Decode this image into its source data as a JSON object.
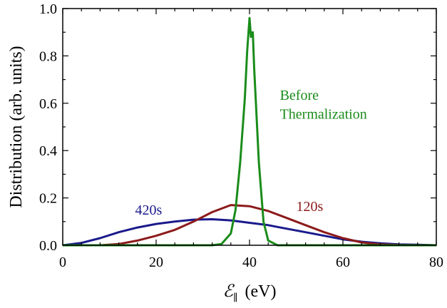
{
  "chart_data": {
    "type": "line",
    "title": "",
    "xlabel_symbol": "ℰ",
    "xlabel_subscript": "∥",
    "xlabel_unit": "(eV)",
    "ylabel": "Distribution (arb. units)",
    "xlim": [
      0,
      80
    ],
    "ylim": [
      0,
      1.0
    ],
    "xticks": [
      0,
      20,
      40,
      60,
      80
    ],
    "yticks": [
      0.0,
      0.2,
      0.4,
      0.6,
      0.8,
      1.0
    ],
    "ytick_labels": [
      "0.0",
      "0.2",
      "0.4",
      "0.6",
      "0.8",
      "1.0"
    ],
    "grid": false,
    "legend": "none",
    "series": [
      {
        "name": "420s",
        "color": "#1a1a8c",
        "x": [
          0,
          4,
          8,
          12,
          16,
          20,
          24,
          28,
          32,
          36,
          40,
          44,
          48,
          52,
          56,
          60,
          64,
          68,
          72,
          76,
          80
        ],
        "y": [
          0.0,
          0.01,
          0.03,
          0.055,
          0.075,
          0.09,
          0.1,
          0.108,
          0.11,
          0.105,
          0.095,
          0.085,
          0.07,
          0.055,
          0.04,
          0.025,
          0.015,
          0.008,
          0.004,
          0.002,
          0.0
        ]
      },
      {
        "name": "120s",
        "color": "#8c1a1a",
        "x": [
          0,
          8,
          12,
          16,
          20,
          24,
          28,
          32,
          36,
          40,
          44,
          48,
          52,
          56,
          60,
          64,
          68,
          72,
          80
        ],
        "y": [
          0.0,
          0.0,
          0.005,
          0.02,
          0.04,
          0.065,
          0.1,
          0.14,
          0.17,
          0.165,
          0.145,
          0.115,
          0.085,
          0.055,
          0.03,
          0.012,
          0.004,
          0.001,
          0.0
        ]
      },
      {
        "name": "Before Thermalization",
        "color": "#1a8c1a",
        "x": [
          0,
          32,
          34,
          36,
          37,
          38,
          39,
          39.5,
          40,
          40.3,
          40.7,
          41,
          42,
          43,
          44,
          46,
          80
        ],
        "y": [
          0.0,
          0.0,
          0.005,
          0.05,
          0.15,
          0.35,
          0.62,
          0.82,
          0.96,
          0.88,
          0.9,
          0.75,
          0.35,
          0.1,
          0.02,
          0.0,
          0.0
        ]
      }
    ],
    "annotations": [
      {
        "text": "420s",
        "x": 15.5,
        "y": 0.13,
        "color": "#1a1a8c"
      },
      {
        "text": "120s",
        "x": 50,
        "y": 0.145,
        "color": "#8c1a1a"
      },
      {
        "text": "Before",
        "x": 46.5,
        "y": 0.615,
        "color": "#1a8c1a"
      },
      {
        "text": "Thermalization",
        "x": 46.5,
        "y": 0.535,
        "color": "#1a8c1a"
      }
    ]
  }
}
